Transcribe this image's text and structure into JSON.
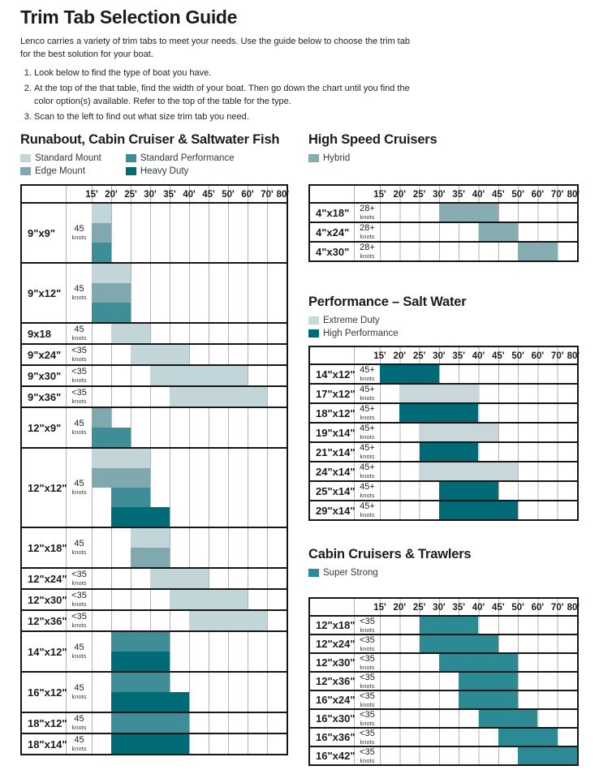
{
  "page": {
    "title": "Trim Tab Selection Guide",
    "intro": "Lenco carries a variety of trim tabs to meet your needs. Use the guide below to choose the trim tab for the best solution for your boat.",
    "steps": [
      "Look below to find the type of boat you have.",
      "At the top of the that table, find the width of your boat. Then go down the chart until you find the color option(s) available. Refer to the top of the table for the type.",
      "Scan to the left to find out what size trim tab you need."
    ]
  },
  "columns": [
    "15'",
    "20'",
    "25'",
    "30'",
    "35'",
    "40'",
    "45'",
    "50'",
    "60'",
    "70'",
    "80'"
  ],
  "knots_unit": "knots",
  "colors": {
    "standard_mount": "#c2d5d8",
    "edge_mount": "#7fa9af",
    "standard_performance": "#3f8e97",
    "heavy_duty": "#006b77",
    "hybrid": "#85adb2",
    "extreme_duty": "#c8d8da",
    "high_performance": "#006b77",
    "super_strong": "#2b8a93"
  },
  "sections": [
    {
      "id": "runabout",
      "title": "Runabout, Cabin Cruiser & Saltwater Fish",
      "legend": [
        {
          "label": "Standard Mount",
          "color": "standard_mount"
        },
        {
          "label": "Edge Mount",
          "color": "edge_mount"
        },
        {
          "label": "Standard Performance",
          "color": "standard_performance"
        },
        {
          "label": "Heavy Duty",
          "color": "heavy_duty"
        }
      ],
      "rows": [
        {
          "size": "9\"x9\"",
          "knots": "45",
          "bands": [
            {
              "color": "standard_mount",
              "start": 1,
              "span": 1
            },
            {
              "color": "edge_mount",
              "start": 1,
              "span": 1
            },
            {
              "color": "standard_performance",
              "start": 1,
              "span": 1
            }
          ]
        },
        {
          "size": "9\"x12\"",
          "knots": "45",
          "bands": [
            {
              "color": "standard_mount",
              "start": 1,
              "span": 2
            },
            {
              "color": "edge_mount",
              "start": 1,
              "span": 2
            },
            {
              "color": "standard_performance",
              "start": 1,
              "span": 2
            }
          ]
        },
        {
          "size": "9x18",
          "knots": "45",
          "bands": [
            {
              "color": "standard_mount",
              "start": 2,
              "span": 2
            }
          ]
        },
        {
          "size": "9\"x24\"",
          "knots": "<35",
          "bands": [
            {
              "color": "standard_mount",
              "start": 3,
              "span": 3
            }
          ]
        },
        {
          "size": "9\"x30\"",
          "knots": "<35",
          "bands": [
            {
              "color": "standard_mount",
              "start": 4,
              "span": 5
            }
          ]
        },
        {
          "size": "9\"x36\"",
          "knots": "<35",
          "bands": [
            {
              "color": "standard_mount",
              "start": 5,
              "span": 5
            }
          ]
        },
        {
          "size": "12\"x9\"",
          "knots": "45",
          "bands": [
            {
              "color": "edge_mount",
              "start": 1,
              "span": 1
            },
            {
              "color": "standard_performance",
              "start": 1,
              "span": 2
            }
          ]
        },
        {
          "size": "12\"x12\"",
          "knots": "45",
          "bands": [
            {
              "color": "standard_mount",
              "start": 1,
              "span": 3
            },
            {
              "color": "edge_mount",
              "start": 1,
              "span": 3
            },
            {
              "color": "standard_performance",
              "start": 2,
              "span": 2
            },
            {
              "color": "heavy_duty",
              "start": 2,
              "span": 3
            }
          ]
        },
        {
          "size": "12\"x18\"",
          "knots": "45",
          "bands": [
            {
              "color": "standard_mount",
              "start": 3,
              "span": 2
            },
            {
              "color": "edge_mount",
              "start": 3,
              "span": 2
            }
          ]
        },
        {
          "size": "12\"x24\"",
          "knots": "<35",
          "bands": [
            {
              "color": "standard_mount",
              "start": 4,
              "span": 3
            }
          ]
        },
        {
          "size": "12\"x30\"",
          "knots": "<35",
          "bands": [
            {
              "color": "standard_mount",
              "start": 5,
              "span": 4
            }
          ]
        },
        {
          "size": "12\"x36\"",
          "knots": "<35",
          "bands": [
            {
              "color": "standard_mount",
              "start": 6,
              "span": 4
            }
          ]
        },
        {
          "size": "14\"x12\"",
          "knots": "45",
          "bands": [
            {
              "color": "standard_performance",
              "start": 2,
              "span": 3
            },
            {
              "color": "heavy_duty",
              "start": 2,
              "span": 3
            }
          ]
        },
        {
          "size": "16\"x12\"",
          "knots": "45",
          "bands": [
            {
              "color": "standard_performance",
              "start": 2,
              "span": 3
            },
            {
              "color": "heavy_duty",
              "start": 2,
              "span": 4
            }
          ]
        },
        {
          "size": "18\"x12\"",
          "knots": "45",
          "bands": [
            {
              "color": "standard_performance",
              "start": 2,
              "span": 4
            }
          ]
        },
        {
          "size": "18\"x14\"",
          "knots": "45",
          "bands": [
            {
              "color": "heavy_duty",
              "start": 2,
              "span": 4
            }
          ]
        }
      ]
    },
    {
      "id": "high-speed",
      "title": "High Speed Cruisers",
      "legend": [
        {
          "label": "Hybrid",
          "color": "hybrid"
        }
      ],
      "rows": [
        {
          "size": "4\"x18\"",
          "knots": "28+",
          "bands": [
            {
              "color": "hybrid",
              "start": 4,
              "span": 3
            }
          ]
        },
        {
          "size": "4\"x24\"",
          "knots": "28+",
          "bands": [
            {
              "color": "hybrid",
              "start": 6,
              "span": 2
            }
          ]
        },
        {
          "size": "4\"x30\"",
          "knots": "28+",
          "bands": [
            {
              "color": "hybrid",
              "start": 8,
              "span": 2
            }
          ]
        }
      ]
    },
    {
      "id": "performance",
      "title": "Performance – Salt Water",
      "legend": [
        {
          "label": "Extreme Duty",
          "color": "extreme_duty"
        },
        {
          "label": "High Performance",
          "color": "high_performance"
        }
      ],
      "rows": [
        {
          "size": "14\"x12\"",
          "knots": "45+",
          "bands": [
            {
              "color": "high_performance",
              "start": 1,
              "span": 3
            }
          ]
        },
        {
          "size": "17\"x12\"",
          "knots": "45+",
          "bands": [
            {
              "color": "extreme_duty",
              "start": 2,
              "span": 4
            }
          ]
        },
        {
          "size": "18\"x12\"",
          "knots": "45+",
          "bands": [
            {
              "color": "high_performance",
              "start": 2,
              "span": 4
            }
          ]
        },
        {
          "size": "19\"x14\"",
          "knots": "45+",
          "bands": [
            {
              "color": "extreme_duty",
              "start": 3,
              "span": 4
            }
          ]
        },
        {
          "size": "21\"x14\"",
          "knots": "45+",
          "bands": [
            {
              "color": "high_performance",
              "start": 3,
              "span": 3
            }
          ]
        },
        {
          "size": "24\"x14\"",
          "knots": "45+",
          "bands": [
            {
              "color": "extreme_duty",
              "start": 3,
              "span": 5
            }
          ]
        },
        {
          "size": "25\"x14\"",
          "knots": "45+",
          "bands": [
            {
              "color": "high_performance",
              "start": 4,
              "span": 3
            }
          ]
        },
        {
          "size": "29\"x14\"",
          "knots": "45+",
          "bands": [
            {
              "color": "high_performance",
              "start": 4,
              "span": 4
            }
          ]
        }
      ]
    },
    {
      "id": "cabin",
      "title": "Cabin Cruisers & Trawlers",
      "legend": [
        {
          "label": "Super Strong",
          "color": "super_strong"
        }
      ],
      "rows": [
        {
          "size": "12\"x18\"",
          "knots": "<35",
          "bands": [
            {
              "color": "super_strong",
              "start": 3,
              "span": 3
            }
          ]
        },
        {
          "size": "12\"x24\"",
          "knots": "<35",
          "bands": [
            {
              "color": "super_strong",
              "start": 3,
              "span": 4
            }
          ]
        },
        {
          "size": "12\"x30\"",
          "knots": "<35",
          "bands": [
            {
              "color": "super_strong",
              "start": 4,
              "span": 4
            }
          ]
        },
        {
          "size": "12\"x36\"",
          "knots": "<35",
          "bands": [
            {
              "color": "super_strong",
              "start": 5,
              "span": 3
            }
          ]
        },
        {
          "size": "16\"x24\"",
          "knots": "<35",
          "bands": [
            {
              "color": "super_strong",
              "start": 5,
              "span": 3
            }
          ]
        },
        {
          "size": "16\"x30\"",
          "knots": "<35",
          "bands": [
            {
              "color": "super_strong",
              "start": 6,
              "span": 3
            }
          ]
        },
        {
          "size": "16\"x36\"",
          "knots": "<35",
          "bands": [
            {
              "color": "super_strong",
              "start": 7,
              "span": 3
            }
          ]
        },
        {
          "size": "16\"x42\"",
          "knots": "<35",
          "bands": [
            {
              "color": "super_strong",
              "start": 8,
              "span": 3
            }
          ]
        }
      ]
    }
  ]
}
